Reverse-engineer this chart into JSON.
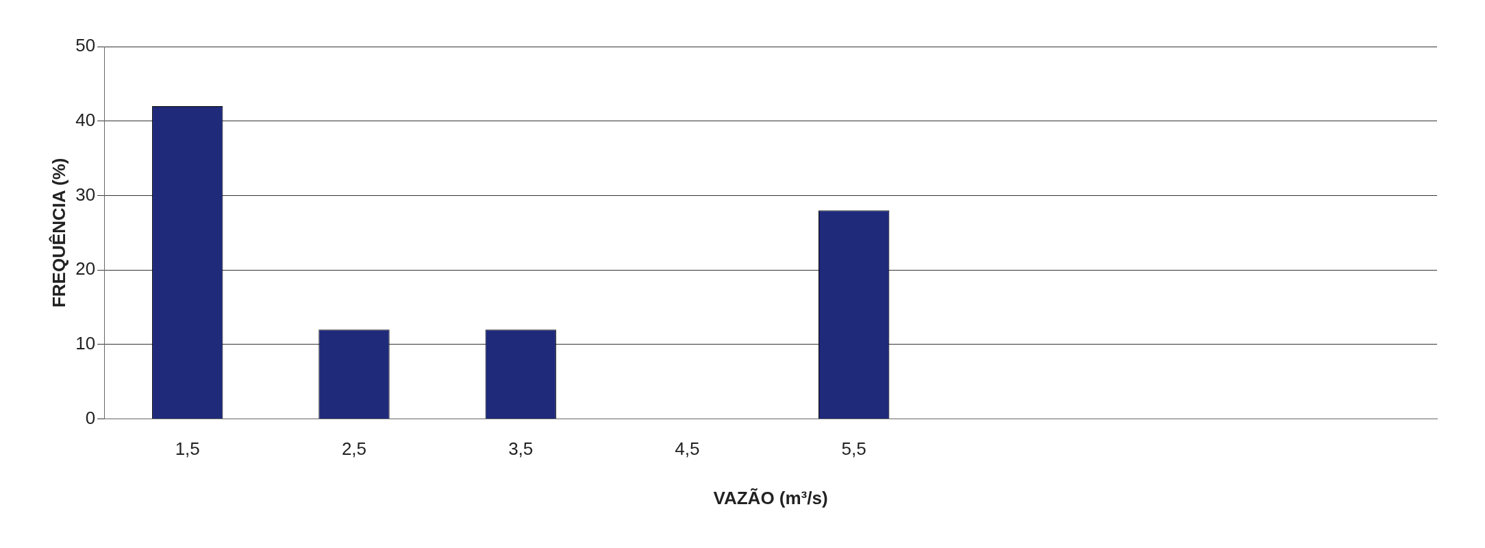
{
  "chart_data": {
    "type": "bar",
    "xlabel": "VAZÃO (m³/s)",
    "ylabel": "FREQUÊNCIA (%)",
    "categories": [
      "1,5",
      "2,5",
      "3,5",
      "4,5",
      "5,5",
      null,
      null,
      null
    ],
    "values": [
      42,
      12,
      12,
      0,
      28,
      null,
      null,
      null
    ],
    "color": "#1f2a7a",
    "ylim": [
      0,
      50
    ],
    "yticks": [
      0,
      10,
      20,
      30,
      40,
      50
    ],
    "grid": "y"
  }
}
